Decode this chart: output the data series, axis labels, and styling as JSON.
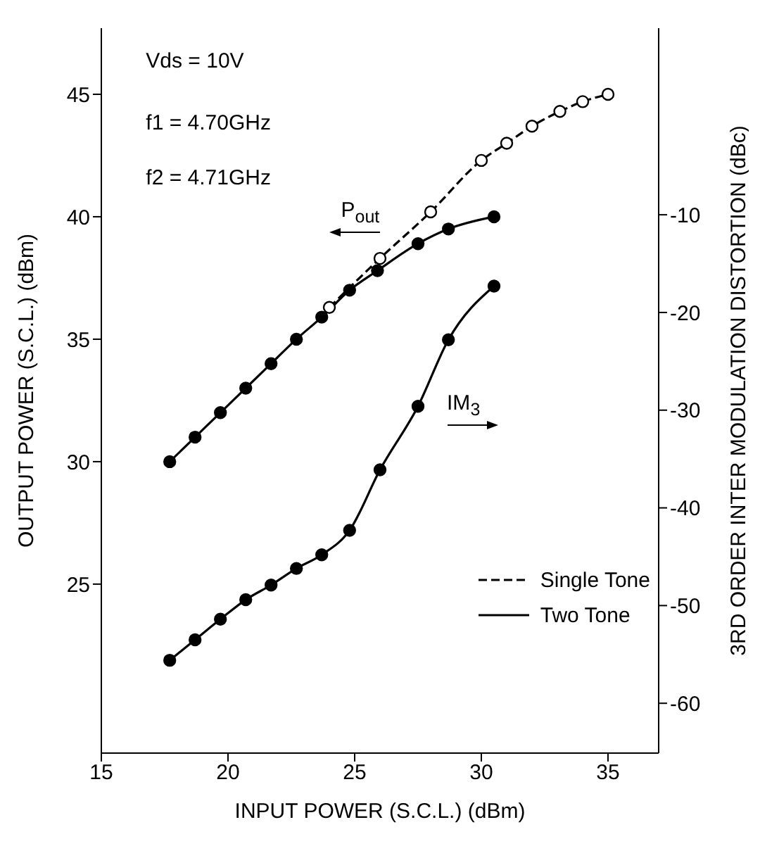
{
  "chart_data": {
    "type": "line",
    "xlabel": "INPUT POWER (S.C.L.) (dBm)",
    "ylabel": "OUTPUT POWER (S.C.L.) (dBm)",
    "y2label": "3RD ORDER INTER MODULATION DISTORTION (dBc)",
    "annotations": [
      "Vds = 10V",
      "f1 = 4.70GHz",
      "f2 = 4.71GHz",
      "P$_{out}$",
      "IM$_{3}$"
    ],
    "xlim": [
      15,
      37
    ],
    "xticks": [
      15,
      20,
      25,
      30,
      35
    ],
    "ylim": [
      18.1,
      47.7
    ],
    "yticks": [
      25,
      30,
      35,
      40,
      45
    ],
    "y2lim": [
      -65.1,
      9.1
    ],
    "y2ticks": [
      -60,
      -50,
      -40,
      -30,
      -20,
      -10
    ],
    "grid": false,
    "legend": "bottom right",
    "marker": "circle",
    "series": [
      {
        "name": "Single Tone",
        "color": "#000000",
        "line_style": "dashed",
        "x": [
          24.0,
          26.0,
          28.0,
          30.0,
          31.0,
          32.0,
          33.1,
          34.0,
          35.0
        ],
        "values": [
          36.3,
          38.3,
          40.2,
          42.3,
          43.0,
          43.7,
          44.3,
          44.7,
          45.0
        ]
      },
      {
        "name": "Two Tone",
        "color": "#000000",
        "line_style": "solid",
        "x": [
          17.7,
          18.7,
          19.7,
          20.7,
          21.7,
          22.7,
          23.7,
          24.8,
          25.9,
          27.5,
          28.7,
          30.5
        ],
        "values": [
          30.0,
          31.0,
          32.0,
          33.0,
          34.0,
          35.0,
          35.9,
          37.0,
          37.8,
          38.9,
          39.5,
          40.0
        ]
      },
      {
        "color": "#000000",
        "line_style": "solid",
        "axis": "y2",
        "x": [
          17.7,
          18.7,
          19.7,
          20.7,
          21.7,
          22.7,
          23.7,
          24.8,
          26.0,
          27.5,
          28.7,
          30.5
        ],
        "values": [
          -55.6,
          -53.5,
          -51.4,
          -49.4,
          -47.9,
          -46.2,
          -44.8,
          -42.3,
          -36.1,
          -29.6,
          -22.8,
          -17.3
        ]
      }
    ]
  }
}
